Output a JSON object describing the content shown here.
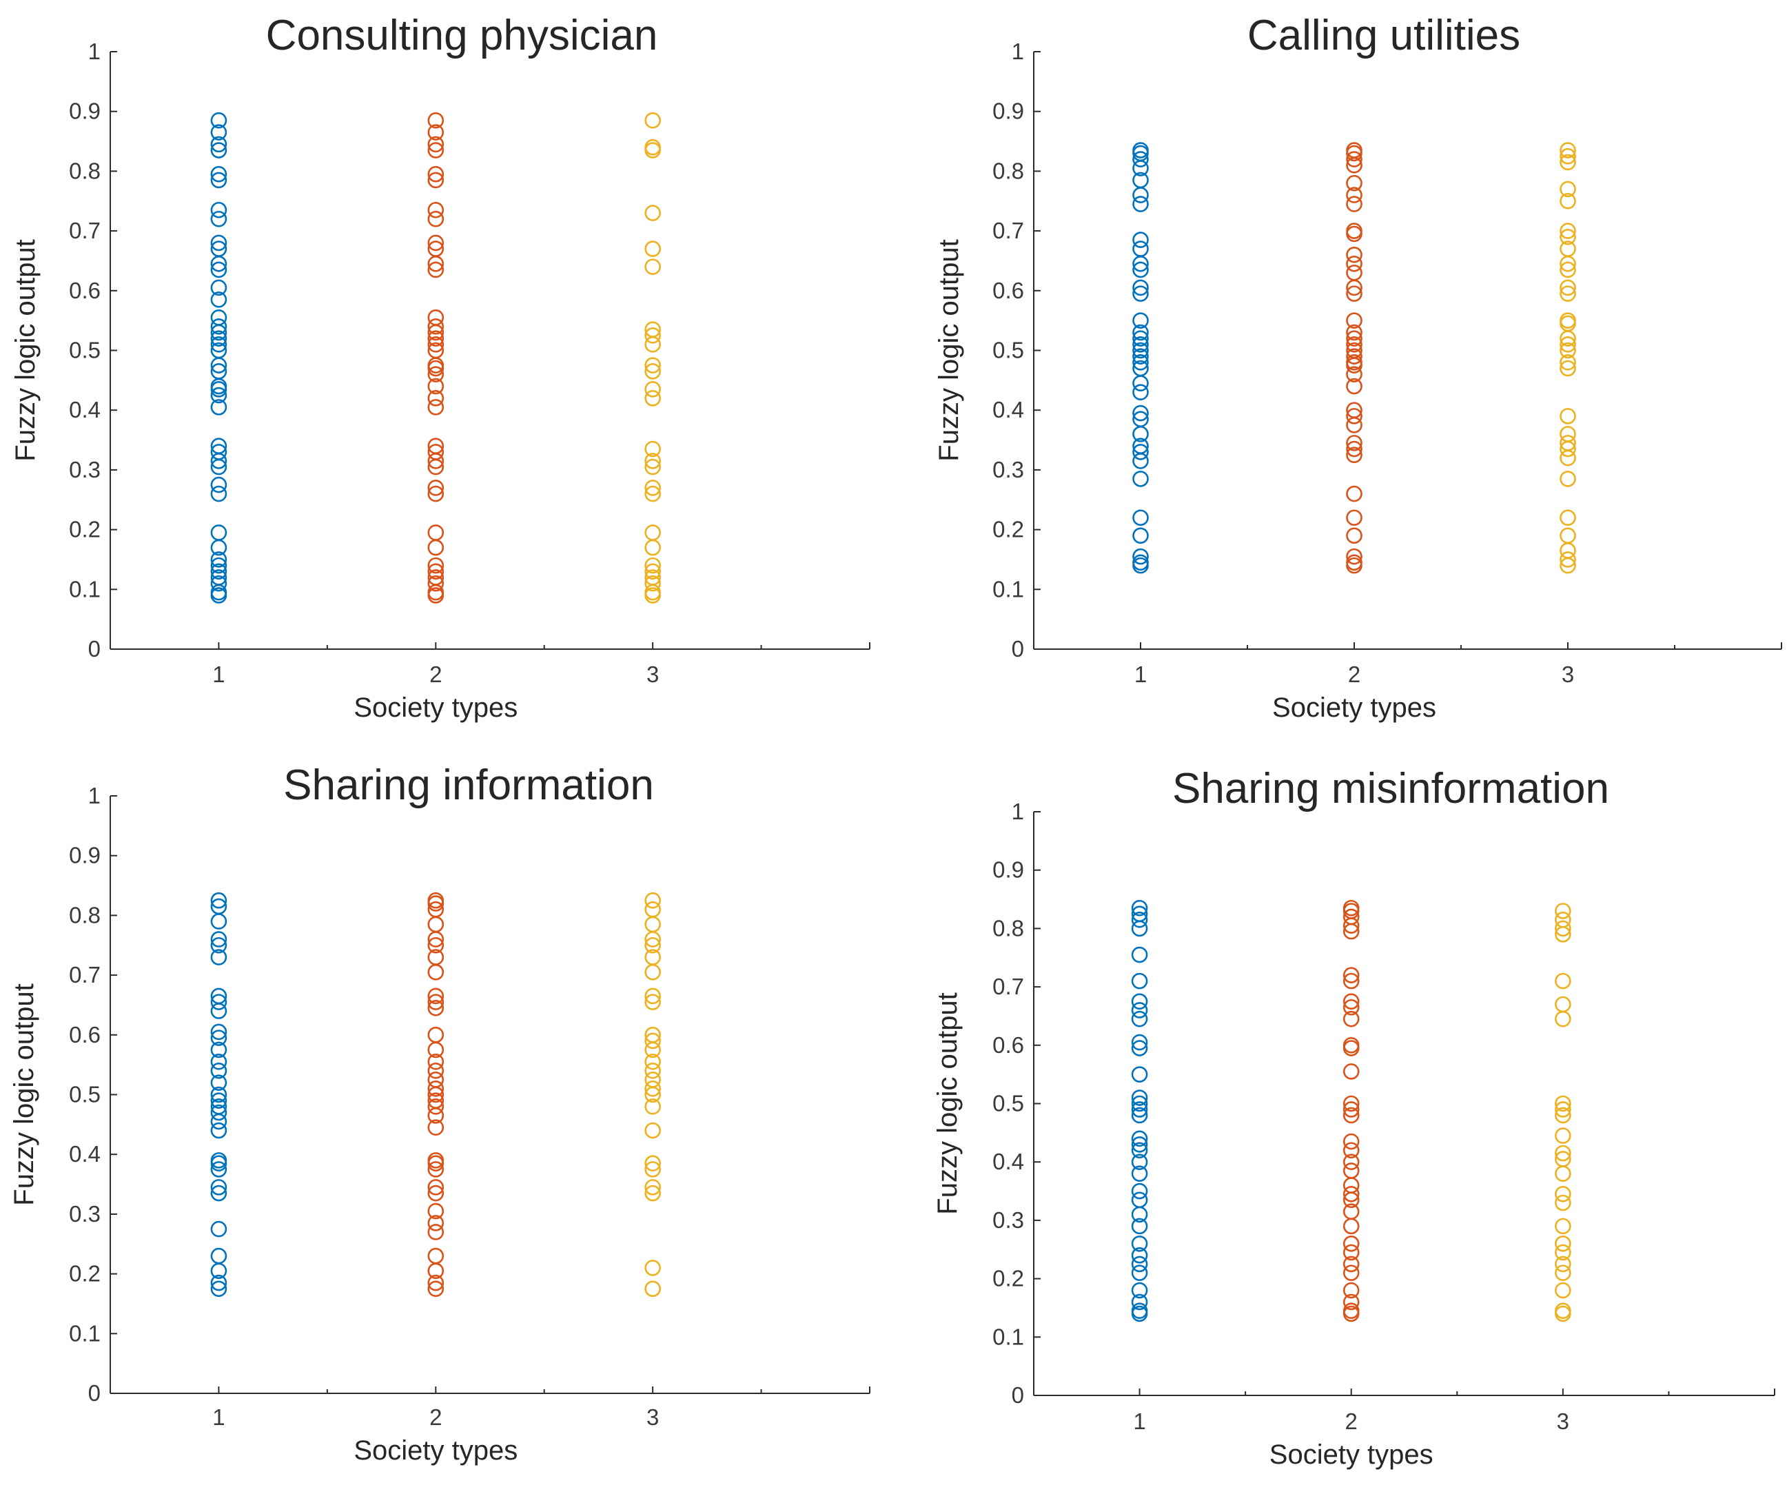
{
  "figure": {
    "colors": {
      "1": "#0072BD",
      "2": "#D95319",
      "3": "#EDB120"
    }
  },
  "chart_data": [
    {
      "type": "scatter",
      "title": "Consulting physician",
      "xlabel": "Society types",
      "ylabel": "Fuzzy logic output",
      "xlim": [
        0.5,
        4
      ],
      "ylim": [
        0,
        1
      ],
      "xticks": [
        "1",
        "2",
        "3"
      ],
      "yticks": [
        "0",
        "0.1",
        "0.2",
        "0.3",
        "0.4",
        "0.5",
        "0.6",
        "0.7",
        "0.8",
        "0.9",
        "1"
      ],
      "series": [
        {
          "name": "1",
          "x": 1,
          "values": [
            0.09,
            0.095,
            0.11,
            0.12,
            0.13,
            0.14,
            0.15,
            0.17,
            0.195,
            0.26,
            0.275,
            0.305,
            0.315,
            0.33,
            0.34,
            0.405,
            0.425,
            0.435,
            0.44,
            0.465,
            0.475,
            0.5,
            0.51,
            0.52,
            0.53,
            0.54,
            0.555,
            0.585,
            0.605,
            0.635,
            0.645,
            0.67,
            0.68,
            0.72,
            0.735,
            0.785,
            0.795,
            0.835,
            0.845,
            0.865,
            0.885
          ]
        },
        {
          "name": "2",
          "x": 2,
          "values": [
            0.09,
            0.095,
            0.11,
            0.12,
            0.13,
            0.14,
            0.17,
            0.195,
            0.26,
            0.27,
            0.305,
            0.315,
            0.33,
            0.34,
            0.405,
            0.42,
            0.44,
            0.46,
            0.47,
            0.475,
            0.5,
            0.51,
            0.52,
            0.53,
            0.54,
            0.555,
            0.635,
            0.645,
            0.67,
            0.68,
            0.72,
            0.735,
            0.785,
            0.795,
            0.835,
            0.845,
            0.865,
            0.885
          ]
        },
        {
          "name": "3",
          "x": 3,
          "values": [
            0.09,
            0.095,
            0.11,
            0.12,
            0.13,
            0.14,
            0.17,
            0.195,
            0.26,
            0.27,
            0.305,
            0.315,
            0.335,
            0.42,
            0.435,
            0.465,
            0.475,
            0.51,
            0.525,
            0.535,
            0.64,
            0.67,
            0.73,
            0.835,
            0.84,
            0.885
          ]
        }
      ]
    },
    {
      "type": "scatter",
      "title": "Calling utilities",
      "xlabel": "Society types",
      "ylabel": "Fuzzy logic output",
      "xlim": [
        0.5,
        4
      ],
      "ylim": [
        0,
        1
      ],
      "xticks": [
        "1",
        "2",
        "3"
      ],
      "yticks": [
        "0",
        "0.1",
        "0.2",
        "0.3",
        "0.4",
        "0.5",
        "0.6",
        "0.7",
        "0.8",
        "0.9",
        "1"
      ],
      "series": [
        {
          "name": "1",
          "x": 1,
          "values": [
            0.14,
            0.145,
            0.155,
            0.19,
            0.22,
            0.285,
            0.315,
            0.33,
            0.34,
            0.36,
            0.385,
            0.395,
            0.43,
            0.445,
            0.47,
            0.48,
            0.49,
            0.5,
            0.51,
            0.52,
            0.53,
            0.55,
            0.595,
            0.605,
            0.635,
            0.645,
            0.67,
            0.685,
            0.745,
            0.76,
            0.785,
            0.805,
            0.82,
            0.83,
            0.835
          ]
        },
        {
          "name": "2",
          "x": 2,
          "values": [
            0.14,
            0.145,
            0.155,
            0.19,
            0.22,
            0.26,
            0.325,
            0.335,
            0.345,
            0.375,
            0.39,
            0.4,
            0.44,
            0.46,
            0.475,
            0.48,
            0.49,
            0.5,
            0.51,
            0.52,
            0.53,
            0.55,
            0.595,
            0.605,
            0.63,
            0.645,
            0.66,
            0.695,
            0.7,
            0.745,
            0.76,
            0.78,
            0.81,
            0.82,
            0.83,
            0.835
          ]
        },
        {
          "name": "3",
          "x": 3,
          "values": [
            0.14,
            0.15,
            0.165,
            0.19,
            0.22,
            0.285,
            0.32,
            0.335,
            0.345,
            0.36,
            0.39,
            0.47,
            0.48,
            0.5,
            0.51,
            0.52,
            0.545,
            0.55,
            0.595,
            0.605,
            0.635,
            0.645,
            0.67,
            0.69,
            0.7,
            0.75,
            0.77,
            0.815,
            0.825,
            0.835
          ]
        }
      ]
    },
    {
      "type": "scatter",
      "title": "Sharing information",
      "xlabel": "Society types",
      "ylabel": "Fuzzy logic output",
      "xlim": [
        0.5,
        4
      ],
      "ylim": [
        0,
        1
      ],
      "xticks": [
        "1",
        "2",
        "3"
      ],
      "yticks": [
        "0",
        "0.1",
        "0.2",
        "0.3",
        "0.4",
        "0.5",
        "0.6",
        "0.7",
        "0.8",
        "0.9",
        "1"
      ],
      "series": [
        {
          "name": "1",
          "x": 1,
          "values": [
            0.175,
            0.185,
            0.205,
            0.23,
            0.275,
            0.335,
            0.345,
            0.375,
            0.385,
            0.39,
            0.44,
            0.455,
            0.47,
            0.48,
            0.49,
            0.5,
            0.52,
            0.54,
            0.555,
            0.575,
            0.595,
            0.605,
            0.64,
            0.655,
            0.665,
            0.73,
            0.75,
            0.76,
            0.79,
            0.815,
            0.825
          ]
        },
        {
          "name": "2",
          "x": 2,
          "values": [
            0.175,
            0.185,
            0.205,
            0.23,
            0.27,
            0.285,
            0.305,
            0.335,
            0.345,
            0.375,
            0.385,
            0.39,
            0.445,
            0.465,
            0.48,
            0.49,
            0.5,
            0.51,
            0.525,
            0.54,
            0.555,
            0.575,
            0.6,
            0.645,
            0.655,
            0.665,
            0.705,
            0.73,
            0.75,
            0.76,
            0.785,
            0.81,
            0.82,
            0.825
          ]
        },
        {
          "name": "3",
          "x": 3,
          "values": [
            0.175,
            0.21,
            0.335,
            0.345,
            0.375,
            0.385,
            0.44,
            0.48,
            0.5,
            0.51,
            0.525,
            0.54,
            0.555,
            0.575,
            0.59,
            0.6,
            0.655,
            0.665,
            0.705,
            0.73,
            0.75,
            0.76,
            0.785,
            0.81,
            0.825
          ]
        }
      ]
    },
    {
      "type": "scatter",
      "title": "Sharing misinformation",
      "xlabel": "Society types",
      "ylabel": "Fuzzy logic output",
      "xlim": [
        0.5,
        4
      ],
      "ylim": [
        0,
        1
      ],
      "xticks": [
        "1",
        "2",
        "3"
      ],
      "yticks": [
        "0",
        "0.1",
        "0.2",
        "0.3",
        "0.4",
        "0.5",
        "0.6",
        "0.7",
        "0.8",
        "0.9",
        "1"
      ],
      "series": [
        {
          "name": "1",
          "x": 1,
          "values": [
            0.14,
            0.145,
            0.16,
            0.18,
            0.21,
            0.225,
            0.24,
            0.26,
            0.29,
            0.31,
            0.335,
            0.35,
            0.38,
            0.4,
            0.42,
            0.43,
            0.44,
            0.48,
            0.49,
            0.5,
            0.51,
            0.55,
            0.595,
            0.605,
            0.645,
            0.66,
            0.675,
            0.71,
            0.755,
            0.8,
            0.815,
            0.825,
            0.835
          ]
        },
        {
          "name": "2",
          "x": 2,
          "values": [
            0.14,
            0.145,
            0.16,
            0.18,
            0.21,
            0.225,
            0.245,
            0.26,
            0.29,
            0.315,
            0.335,
            0.345,
            0.36,
            0.385,
            0.4,
            0.42,
            0.435,
            0.48,
            0.49,
            0.5,
            0.555,
            0.595,
            0.6,
            0.645,
            0.665,
            0.675,
            0.71,
            0.72,
            0.795,
            0.805,
            0.82,
            0.83,
            0.835
          ]
        },
        {
          "name": "3",
          "x": 3,
          "values": [
            0.14,
            0.145,
            0.18,
            0.21,
            0.225,
            0.245,
            0.26,
            0.29,
            0.33,
            0.345,
            0.38,
            0.405,
            0.415,
            0.445,
            0.48,
            0.49,
            0.5,
            0.645,
            0.67,
            0.71,
            0.79,
            0.8,
            0.815,
            0.83
          ]
        }
      ]
    }
  ]
}
